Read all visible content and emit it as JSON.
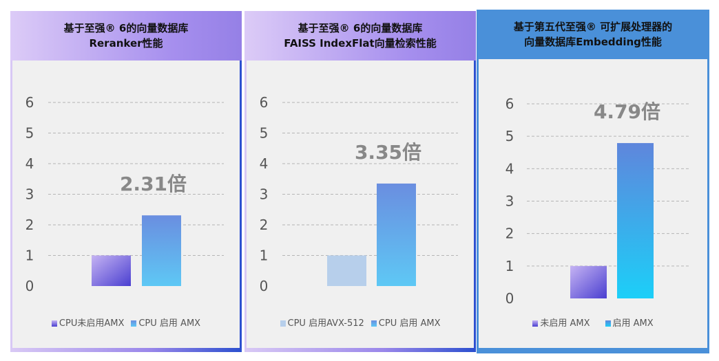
{
  "chart_data": [
    {
      "type": "bar",
      "title_lines": [
        "基于至强® 6的向量数据库",
        "Reranker性能"
      ],
      "categories": [
        "CPU未启用AMX",
        "CPU 启用 AMX"
      ],
      "values": [
        1,
        2.31
      ],
      "annotation": "2.31倍",
      "yticks": [
        "0",
        "1",
        "2",
        "3",
        "4",
        "5",
        "6"
      ],
      "ylim": [
        0,
        6
      ],
      "grid": true,
      "legend": "bottom",
      "colors": [
        [
          "#c5b3f3",
          "#4a3fd0"
        ],
        [
          "#6a8ee0",
          "#5ec8f5"
        ]
      ]
    },
    {
      "type": "bar",
      "title_lines": [
        "基于至强® 6的向量数据库",
        "FAISS IndexFlat向量检索性能"
      ],
      "categories": [
        "CPU 启用AVX-512",
        "CPU 启用 AMX"
      ],
      "values": [
        1,
        3.35
      ],
      "annotation": "3.35倍",
      "yticks": [
        "0",
        "1",
        "2",
        "3",
        "4",
        "5",
        "6"
      ],
      "ylim": [
        0,
        6
      ],
      "grid": true,
      "legend": "bottom",
      "colors": [
        [
          "#b7cfeb",
          "#b7cfeb"
        ],
        [
          "#6a8ee0",
          "#5ec8f5"
        ]
      ]
    },
    {
      "type": "bar",
      "title_lines": [
        "基于第五代至强® 可扩展处理器的",
        "向量数据库Embedding性能"
      ],
      "categories": [
        "未启用 AMX",
        "启用 AMX"
      ],
      "values": [
        1,
        4.79
      ],
      "annotation": "4.79倍",
      "yticks": [
        "0",
        "1",
        "2",
        "3",
        "4",
        "5",
        "6"
      ],
      "ylim": [
        0,
        6
      ],
      "grid": true,
      "legend": "bottom",
      "colors": [
        [
          "#c5b3f3",
          "#4a3fd0"
        ],
        [
          "#5f86dc",
          "#1ccff8"
        ]
      ]
    }
  ]
}
